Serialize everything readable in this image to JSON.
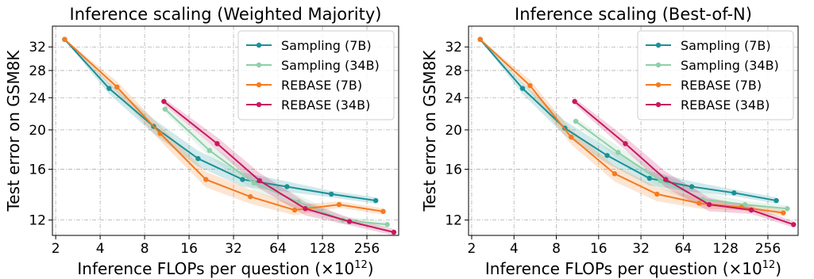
{
  "chart_data": [
    {
      "type": "line",
      "title": "Inference scaling (Weighted Majority)",
      "xlabel": "Inference FLOPs per question (×10",
      "xlabel_sup": "12",
      "xlabel_tail": ")",
      "ylabel": "Test error on GSM8K",
      "x_scale": "log2",
      "y_scale": "log",
      "xlim": [
        1.9,
        420
      ],
      "ylim": [
        11.0,
        36.0
      ],
      "x_ticks": [
        2,
        4,
        8,
        16,
        32,
        64,
        128,
        256
      ],
      "x_tick_labels": [
        "2",
        "4",
        "8",
        "16",
        "32",
        "64",
        "128",
        "256"
      ],
      "y_ticks": [
        12,
        16,
        20,
        24,
        28,
        32
      ],
      "y_tick_labels": [
        "12",
        "16",
        "20",
        "24",
        "28",
        "32"
      ],
      "grid": true,
      "legend_position": "top-right",
      "series": [
        {
          "name": "Sampling (7B)",
          "color": "#1a9196",
          "band": true,
          "x": [
            2.3,
            4.6,
            9.2,
            18.4,
            36.8,
            73.6,
            147,
            294
          ],
          "y": [
            33.4,
            25.3,
            20.4,
            17.0,
            15.1,
            14.5,
            13.9,
            13.4
          ]
        },
        {
          "name": "Sampling (34B)",
          "color": "#8fcfa8",
          "band": true,
          "x": [
            11,
            22,
            44,
            88,
            176,
            352
          ],
          "y": [
            22.5,
            17.8,
            14.8,
            13.3,
            12.0,
            11.7
          ]
        },
        {
          "name": "REBASE (7B)",
          "color": "#f47b20",
          "band": true,
          "x": [
            2.3,
            5.2,
            10.2,
            20.8,
            41.6,
            83,
            166,
            330
          ],
          "y": [
            33.4,
            25.5,
            19.6,
            15.1,
            13.7,
            12.7,
            13.1,
            12.6
          ]
        },
        {
          "name": "REBASE (34B)",
          "color": "#c8195f",
          "band": true,
          "x": [
            10.8,
            24.8,
            48,
            98,
            195,
            390
          ],
          "y": [
            23.5,
            18.5,
            15.0,
            12.8,
            11.9,
            11.2
          ]
        }
      ]
    },
    {
      "type": "line",
      "title": "Inference scaling (Best-of-N)",
      "xlabel": "Inference FLOPs per question (×10",
      "xlabel_sup": "12",
      "xlabel_tail": ")",
      "ylabel": "Test error on GSM8K",
      "x_scale": "log2",
      "y_scale": "log",
      "xlim": [
        1.9,
        420
      ],
      "ylim": [
        11.0,
        36.0
      ],
      "x_ticks": [
        2,
        4,
        8,
        16,
        32,
        64,
        128,
        256
      ],
      "x_tick_labels": [
        "2",
        "4",
        "8",
        "16",
        "32",
        "64",
        "128",
        "256"
      ],
      "y_ticks": [
        12,
        16,
        20,
        24,
        28,
        32
      ],
      "y_tick_labels": [
        "12",
        "16",
        "20",
        "24",
        "28",
        "32"
      ],
      "grid": true,
      "legend_position": "top-right",
      "series": [
        {
          "name": "Sampling (7B)",
          "color": "#1a9196",
          "band": true,
          "x": [
            2.3,
            4.6,
            9.2,
            18.4,
            36.8,
            73.6,
            147,
            294
          ],
          "y": [
            33.4,
            25.3,
            20.2,
            17.3,
            15.2,
            14.5,
            14.0,
            13.4
          ]
        },
        {
          "name": "Sampling (34B)",
          "color": "#8fcfa8",
          "band": true,
          "x": [
            11,
            22,
            44,
            88,
            176,
            352
          ],
          "y": [
            21.0,
            17.6,
            15.0,
            13.5,
            13.1,
            12.8
          ]
        },
        {
          "name": "REBASE (7B)",
          "color": "#f47b20",
          "band": true,
          "x": [
            2.3,
            5.2,
            10.2,
            20.8,
            41.6,
            83,
            166,
            330
          ],
          "y": [
            33.4,
            25.7,
            19.2,
            15.6,
            13.9,
            13.2,
            12.9,
            12.5
          ]
        },
        {
          "name": "REBASE (34B)",
          "color": "#c8195f",
          "band": true,
          "x": [
            10.8,
            24.8,
            48,
            98,
            195,
            390
          ],
          "y": [
            23.5,
            18.5,
            15.1,
            13.1,
            12.7,
            11.7
          ]
        }
      ]
    }
  ]
}
